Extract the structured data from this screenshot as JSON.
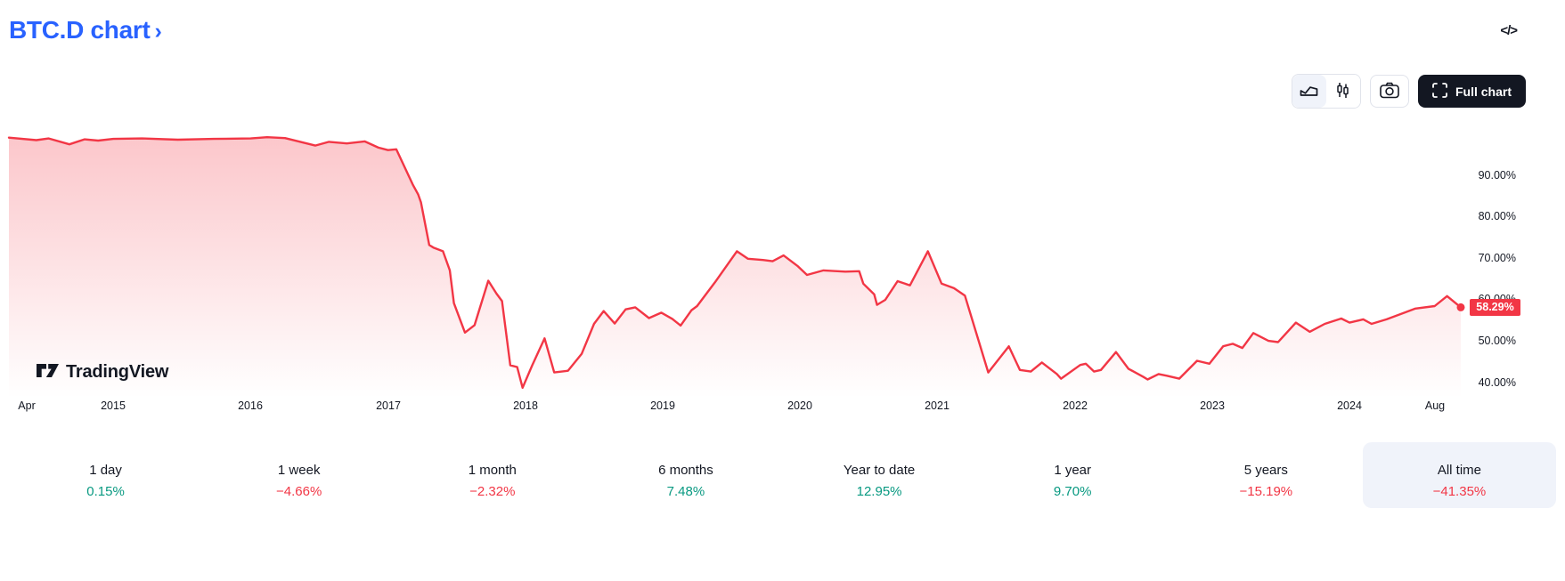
{
  "header": {
    "title": "BTC.D chart",
    "chevron": "›",
    "embed_code_icon": "</>"
  },
  "toolbar": {
    "full_chart_label": "Full chart",
    "selected_style": "area"
  },
  "watermark": "TradingView",
  "colors": {
    "accent": "#2962FF",
    "up": "#089981",
    "down": "#F23645",
    "line": "#F23645",
    "badge_bg": "#F23645",
    "selected_bg": "#F0F3FA",
    "dark_button_bg": "#131722",
    "text": "#131722",
    "border": "#E0E3EB"
  },
  "chart_data": {
    "type": "area",
    "symbol": "BTC.D",
    "x_unit": "decimal_year",
    "xlim": [
      2014.24,
      2024.81
    ],
    "ylim": [
      36.5,
      104.5
    ],
    "grid": false,
    "line_color": "#F23645",
    "fill_top_opacity": 0.28,
    "last_value": 58.29,
    "last_value_label": "58.29%",
    "y_ticks": [
      {
        "v": 90,
        "label": "90.00%"
      },
      {
        "v": 80,
        "label": "80.00%"
      },
      {
        "v": 70,
        "label": "70.00%"
      },
      {
        "v": 60,
        "label": "60.00%"
      },
      {
        "v": 50,
        "label": "50.00%"
      },
      {
        "v": 40,
        "label": "40.00%"
      }
    ],
    "x_ticks": [
      {
        "x": 2014.37,
        "label": "Apr"
      },
      {
        "x": 2015,
        "label": "2015"
      },
      {
        "x": 2016,
        "label": "2016"
      },
      {
        "x": 2017,
        "label": "2017"
      },
      {
        "x": 2018,
        "label": "2018"
      },
      {
        "x": 2019,
        "label": "2019"
      },
      {
        "x": 2020,
        "label": "2020"
      },
      {
        "x": 2021,
        "label": "2021"
      },
      {
        "x": 2022,
        "label": "2022"
      },
      {
        "x": 2023,
        "label": "2023"
      },
      {
        "x": 2024,
        "label": "2024"
      },
      {
        "x": 2024.62,
        "label": "Aug"
      }
    ],
    "points": [
      [
        2014.24,
        99.2
      ],
      [
        2014.44,
        98.6
      ],
      [
        2014.53,
        99.0
      ],
      [
        2014.68,
        97.6
      ],
      [
        2014.79,
        98.8
      ],
      [
        2014.89,
        98.5
      ],
      [
        2015.0,
        98.9
      ],
      [
        2015.21,
        99.0
      ],
      [
        2015.47,
        98.7
      ],
      [
        2015.73,
        98.9
      ],
      [
        2016.0,
        99.0
      ],
      [
        2016.12,
        99.3
      ],
      [
        2016.25,
        99.1
      ],
      [
        2016.47,
        97.3
      ],
      [
        2016.57,
        98.2
      ],
      [
        2016.7,
        97.8
      ],
      [
        2016.83,
        98.3
      ],
      [
        2016.93,
        96.8
      ],
      [
        2017.0,
        96.2
      ],
      [
        2017.06,
        96.4
      ],
      [
        2017.18,
        87.9
      ],
      [
        2017.22,
        85.5
      ],
      [
        2017.24,
        83.6
      ],
      [
        2017.3,
        73.3
      ],
      [
        2017.33,
        72.7
      ],
      [
        2017.4,
        71.8
      ],
      [
        2017.45,
        67.2
      ],
      [
        2017.48,
        59.3
      ],
      [
        2017.56,
        52.2
      ],
      [
        2017.63,
        54.0
      ],
      [
        2017.73,
        64.7
      ],
      [
        2017.79,
        61.6
      ],
      [
        2017.83,
        59.8
      ],
      [
        2017.89,
        44.3
      ],
      [
        2017.94,
        43.9
      ],
      [
        2017.98,
        38.9
      ],
      [
        2018.05,
        44.3
      ],
      [
        2018.14,
        50.8
      ],
      [
        2018.21,
        42.6
      ],
      [
        2018.31,
        43.0
      ],
      [
        2018.41,
        47.1
      ],
      [
        2018.5,
        54.3
      ],
      [
        2018.57,
        57.4
      ],
      [
        2018.65,
        54.4
      ],
      [
        2018.73,
        57.8
      ],
      [
        2018.8,
        58.3
      ],
      [
        2018.9,
        55.7
      ],
      [
        2018.99,
        57.0
      ],
      [
        2019.07,
        55.5
      ],
      [
        2019.13,
        53.9
      ],
      [
        2019.21,
        57.6
      ],
      [
        2019.25,
        58.6
      ],
      [
        2019.38,
        64.3
      ],
      [
        2019.54,
        71.8
      ],
      [
        2019.62,
        70.0
      ],
      [
        2019.73,
        69.7
      ],
      [
        2019.8,
        69.4
      ],
      [
        2019.88,
        70.8
      ],
      [
        2019.98,
        68.3
      ],
      [
        2020.05,
        66.1
      ],
      [
        2020.17,
        67.2
      ],
      [
        2020.33,
        66.9
      ],
      [
        2020.43,
        67.0
      ],
      [
        2020.46,
        64.0
      ],
      [
        2020.54,
        61.4
      ],
      [
        2020.56,
        58.9
      ],
      [
        2020.62,
        60.1
      ],
      [
        2020.71,
        64.6
      ],
      [
        2020.8,
        63.6
      ],
      [
        2020.93,
        71.8
      ],
      [
        2021.03,
        64.0
      ],
      [
        2021.12,
        62.9
      ],
      [
        2021.2,
        61.1
      ],
      [
        2021.37,
        42.6
      ],
      [
        2021.52,
        48.9
      ],
      [
        2021.6,
        43.2
      ],
      [
        2021.68,
        42.8
      ],
      [
        2021.76,
        45.0
      ],
      [
        2021.87,
        42.2
      ],
      [
        2021.9,
        41.1
      ],
      [
        2022.04,
        44.4
      ],
      [
        2022.08,
        44.7
      ],
      [
        2022.14,
        42.8
      ],
      [
        2022.19,
        43.2
      ],
      [
        2022.3,
        47.5
      ],
      [
        2022.39,
        43.5
      ],
      [
        2022.5,
        41.5
      ],
      [
        2022.53,
        40.9
      ],
      [
        2022.61,
        42.2
      ],
      [
        2022.67,
        41.8
      ],
      [
        2022.76,
        41.1
      ],
      [
        2022.89,
        45.4
      ],
      [
        2022.98,
        44.7
      ],
      [
        2023.08,
        48.9
      ],
      [
        2023.15,
        49.5
      ],
      [
        2023.22,
        48.5
      ],
      [
        2023.3,
        52.1
      ],
      [
        2023.41,
        50.2
      ],
      [
        2023.48,
        49.9
      ],
      [
        2023.61,
        54.6
      ],
      [
        2023.71,
        52.4
      ],
      [
        2023.82,
        54.3
      ],
      [
        2023.94,
        55.6
      ],
      [
        2024.0,
        54.6
      ],
      [
        2024.1,
        55.4
      ],
      [
        2024.16,
        54.3
      ],
      [
        2024.27,
        55.4
      ],
      [
        2024.4,
        57.0
      ],
      [
        2024.48,
        58.0
      ],
      [
        2024.62,
        58.6
      ],
      [
        2024.71,
        61.0
      ],
      [
        2024.81,
        58.29
      ]
    ]
  },
  "stats": {
    "items": [
      {
        "label": "1 day",
        "value": "0.15%",
        "direction": "up",
        "selected": false
      },
      {
        "label": "1 week",
        "value": "−4.66%",
        "direction": "down",
        "selected": false
      },
      {
        "label": "1 month",
        "value": "−2.32%",
        "direction": "down",
        "selected": false
      },
      {
        "label": "6 months",
        "value": "7.48%",
        "direction": "up",
        "selected": false
      },
      {
        "label": "Year to date",
        "value": "12.95%",
        "direction": "up",
        "selected": false
      },
      {
        "label": "1 year",
        "value": "9.70%",
        "direction": "up",
        "selected": false
      },
      {
        "label": "5 years",
        "value": "−15.19%",
        "direction": "down",
        "selected": false
      },
      {
        "label": "All time",
        "value": "−41.35%",
        "direction": "down",
        "selected": true
      }
    ]
  }
}
